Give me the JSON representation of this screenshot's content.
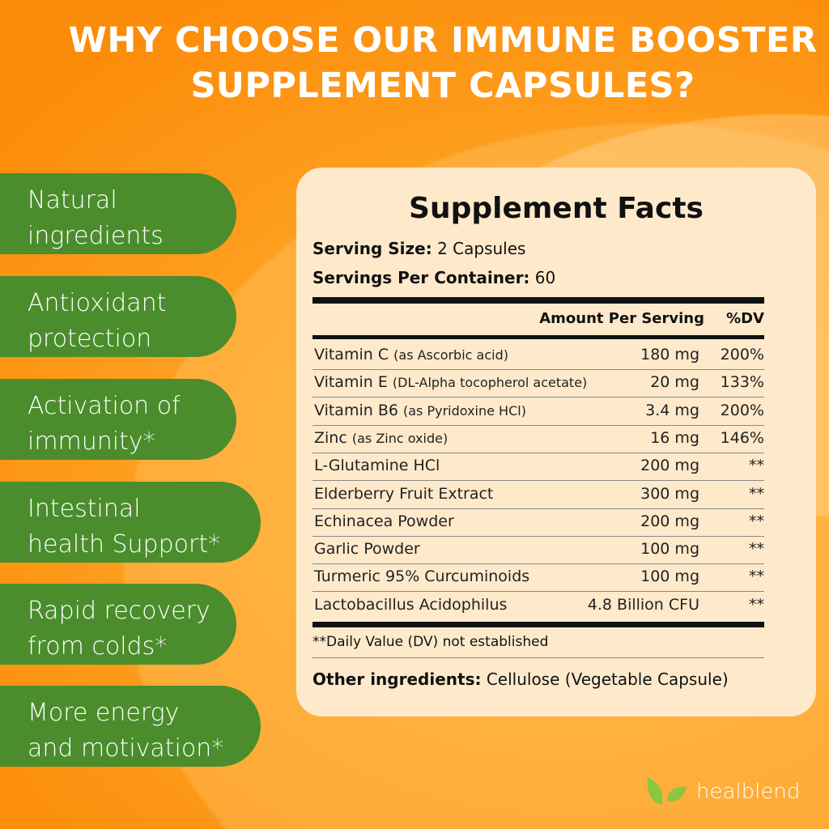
{
  "title": {
    "line1": "WHY CHOOSE OUR IMMUNE BOOSTER",
    "line2": "SUPPLEMENT CAPSULES?"
  },
  "benefits": [
    {
      "line1": "Natural",
      "line2": "ingredients"
    },
    {
      "line1": "Antioxidant",
      "line2": "protection"
    },
    {
      "line1": "Activation of",
      "line2": "immunity*"
    },
    {
      "line1": "Intestinal",
      "line2": "health Support*"
    },
    {
      "line1": "Rapid recovery",
      "line2": "from colds*"
    },
    {
      "line1": "More energy",
      "line2": "and motivation*"
    }
  ],
  "facts": {
    "heading": "Supplement Facts",
    "serving_size_label": "Serving Size:",
    "serving_size": "2 Capsules",
    "servings_label": "Servings Per Container:",
    "servings": "60",
    "col_amount": "Amount Per Serving",
    "col_dv": "%DV",
    "rows": [
      {
        "name": "Vitamin C",
        "detail": "(as Ascorbic acid)",
        "amount": "180 mg",
        "dv": "200%"
      },
      {
        "name": "Vitamin E",
        "detail": "(DL-Alpha tocopherol acetate)",
        "amount": "20 mg",
        "dv": "133%"
      },
      {
        "name": "Vitamin B6",
        "detail": "(as Pyridoxine HCl)",
        "amount": "3.4 mg",
        "dv": "200%"
      },
      {
        "name": "Zinc",
        "detail": "(as Zinc oxide)",
        "amount": "16 mg",
        "dv": "146%"
      },
      {
        "name": "L-Glutamine HCl",
        "detail": "",
        "amount": "200 mg",
        "dv": "**"
      },
      {
        "name": "Elderberry Fruit Extract",
        "detail": "",
        "amount": "300 mg",
        "dv": "**"
      },
      {
        "name": "Echinacea Powder",
        "detail": "",
        "amount": "200 mg",
        "dv": "**"
      },
      {
        "name": "Garlic Powder",
        "detail": "",
        "amount": "100 mg",
        "dv": "**"
      },
      {
        "name": "Turmeric 95% Curcuminoids",
        "detail": "",
        "amount": "100 mg",
        "dv": "**"
      },
      {
        "name": "Lactobacillus Acidophilus",
        "detail": "",
        "amount": "4.8 Billion CFU",
        "dv": "**"
      }
    ],
    "footnote": "**Daily Value (DV) not established",
    "other_label": "Other ingredients:",
    "other": "Cellulose (Vegetable Capsule)"
  },
  "brand": {
    "name": "healblend",
    "icon": "leaf-icon",
    "colors": {
      "leaf": "#8cc63f",
      "pill": "#4b8d2c",
      "background": "#ffa020"
    }
  }
}
